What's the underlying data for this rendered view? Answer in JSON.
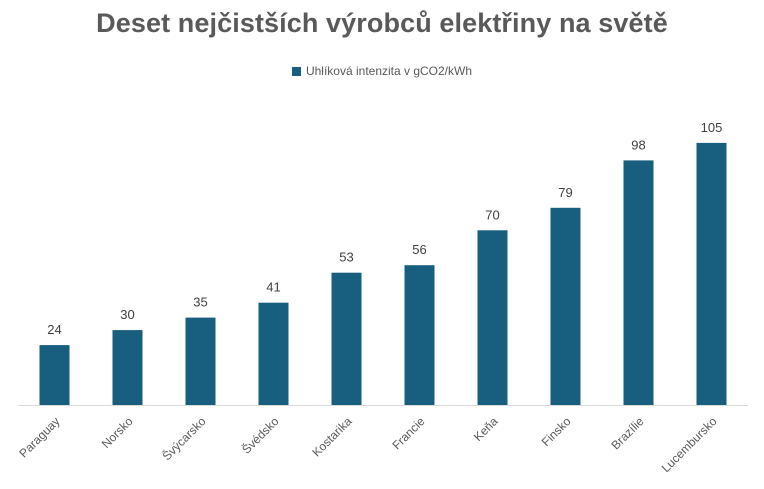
{
  "chart_data": {
    "type": "bar",
    "title": "Deset nejčistších výrobců elektřiny na světě",
    "legend": "top",
    "grid": false,
    "series": [
      {
        "name": "Uhlíková intenzita v gCO2/kWh",
        "color": "#175E7F",
        "values": [
          24,
          30,
          35,
          41,
          53,
          56,
          70,
          79,
          98,
          105
        ]
      }
    ],
    "categories": [
      "Paraguay",
      "Norsko",
      "Švýcarsko",
      "Švédsko",
      "Kostarika",
      "Francie",
      "Keňa",
      "Finsko",
      "Brazílie",
      "Lucembursko"
    ],
    "ylim": [
      0,
      110
    ],
    "xlabel": "",
    "ylabel": ""
  }
}
